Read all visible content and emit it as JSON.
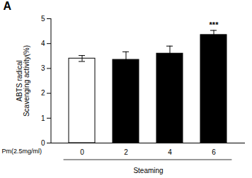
{
  "chart_data": {
    "type": "bar",
    "title": "A",
    "categories": [
      "0",
      "2",
      "4",
      "6"
    ],
    "values": [
      3.4,
      3.35,
      3.6,
      4.35
    ],
    "errors": [
      0.12,
      0.32,
      0.3,
      0.18
    ],
    "colors": [
      "#ffffff",
      "#000000",
      "#000000",
      "#000000"
    ],
    "ylabel": "ABTS radical\nScavenging activity(%)",
    "xlabel": "Steaming",
    "annotations": [
      {
        "x": "6",
        "text": "***"
      },
      {
        "text": "Pm(2.5mg/ml)"
      }
    ],
    "ylim": [
      0,
      5
    ],
    "yticks": [
      0,
      1,
      2,
      3,
      4,
      5
    ],
    "grid": false
  }
}
